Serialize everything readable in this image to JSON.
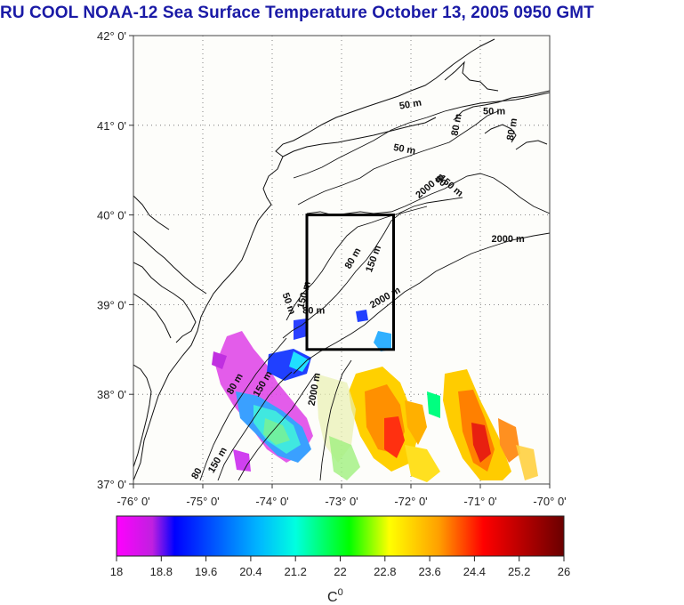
{
  "title": "RU COOL  NOAA-12 Sea Surface Temperature October 13, 2005 0950 GMT",
  "map": {
    "lat_range": [
      37,
      42
    ],
    "lon_range": [
      -76,
      -70
    ],
    "lat_ticks": [
      "37° 0'",
      "38° 0'",
      "39° 0'",
      "40° 0'",
      "41° 0'",
      "42° 0'"
    ],
    "lon_ticks": [
      "-76° 0'",
      "-75° 0'",
      "-74° 0'",
      "-73° 0'",
      "-72° 0'",
      "-71° 0'",
      "-70° 0'"
    ],
    "grid": "dotted",
    "study_box": {
      "lon": [
        -73.5,
        -72.25
      ],
      "lat": [
        38.5,
        40.0
      ]
    },
    "contour_labels": [
      {
        "text": "50 m",
        "lon": -72.0,
        "lat": 41.2,
        "rot": -10
      },
      {
        "text": "50 m",
        "lon": -70.8,
        "lat": 41.12,
        "rot": 0
      },
      {
        "text": "50 m",
        "lon": -72.1,
        "lat": 40.7,
        "rot": 10
      },
      {
        "text": "80 m",
        "lon": -71.3,
        "lat": 41.0,
        "rot": -80
      },
      {
        "text": "80 m",
        "lon": -70.5,
        "lat": 40.95,
        "rot": -80
      },
      {
        "text": "2000 m",
        "lon": -71.7,
        "lat": 40.3,
        "rot": -40
      },
      {
        "text": "80",
        "lon": -71.6,
        "lat": 40.35,
        "rot": 40
      },
      {
        "text": "150 m",
        "lon": -71.45,
        "lat": 40.3,
        "rot": 40
      },
      {
        "text": "2000 m",
        "lon": -70.6,
        "lat": 39.7,
        "rot": 0
      },
      {
        "text": "80 m",
        "lon": -72.8,
        "lat": 39.5,
        "rot": -60
      },
      {
        "text": "150 m",
        "lon": -72.5,
        "lat": 39.5,
        "rot": -70
      },
      {
        "text": "2000 m",
        "lon": -72.35,
        "lat": 39.05,
        "rot": -30
      },
      {
        "text": "50 m",
        "lon": -73.8,
        "lat": 39.0,
        "rot": 70
      },
      {
        "text": "80 m",
        "lon": -73.4,
        "lat": 38.9,
        "rot": 0
      },
      {
        "text": "150 m",
        "lon": -73.5,
        "lat": 39.1,
        "rot": -75
      },
      {
        "text": "80 m",
        "lon": -74.5,
        "lat": 38.1,
        "rot": -60
      },
      {
        "text": "150 m",
        "lon": -74.1,
        "lat": 38.1,
        "rot": -60
      },
      {
        "text": "2000 m",
        "lon": -73.35,
        "lat": 38.05,
        "rot": -80
      },
      {
        "text": "80",
        "lon": -75.05,
        "lat": 37.1,
        "rot": -60
      },
      {
        "text": "150 m",
        "lon": -74.75,
        "lat": 37.25,
        "rot": -60
      }
    ]
  },
  "colorbar": {
    "min": 18,
    "max": 26,
    "ticks": [
      "18",
      "18.8",
      "19.6",
      "20.4",
      "21.2",
      "22",
      "22.8",
      "23.6",
      "24.4",
      "25.2",
      "26"
    ],
    "unit_label": "C",
    "unit_sup": "0",
    "colors": [
      "#ff00ff",
      "#0000ff",
      "#00ffff",
      "#00ff00",
      "#ffff00",
      "#ff0000",
      "#7a0000"
    ]
  }
}
